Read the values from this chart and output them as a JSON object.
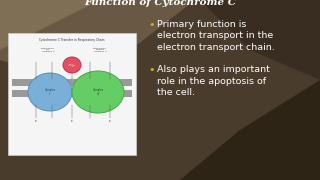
{
  "title": "Function of Cytochrome C",
  "bullet1_line1": "Primary function is",
  "bullet1_line2": "electron transport in the",
  "bullet1_line3": "electron transport chain.",
  "bullet2_line1": "Also plays an important",
  "bullet2_line2": "role in the apoptosis of",
  "bullet2_line3": "the cell.",
  "title_color": "#ffffff",
  "text_color": "#ffffff",
  "bullet_color": "#c8b400",
  "bg_base": "#4a3c2c",
  "title_fontsize": 7.5,
  "body_fontsize": 6.8,
  "diagram_caption": "Cytochrome C Transfer in Respiratory Chain"
}
